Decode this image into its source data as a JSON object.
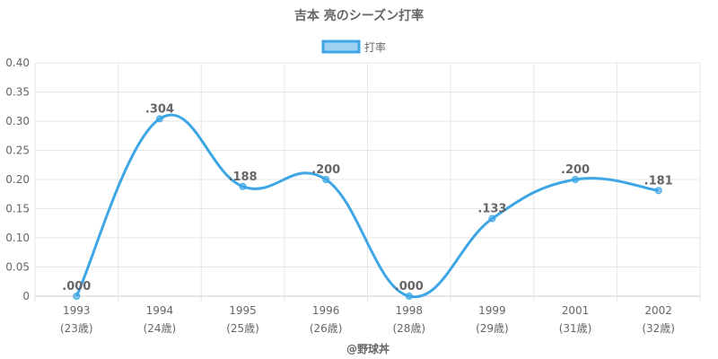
{
  "chart_data": {
    "type": "line",
    "title": "吉本 亮のシーズン打率",
    "legend": {
      "position": "top",
      "label": "打率"
    },
    "categories": [
      "1993",
      "1994",
      "1995",
      "1996",
      "1998",
      "1999",
      "2001",
      "2002"
    ],
    "category_sublabels": [
      "(23歳)",
      "(24歳)",
      "(25歳)",
      "(26歳)",
      "(28歳)",
      "(29歳)",
      "(31歳)",
      "(32歳)"
    ],
    "series": [
      {
        "name": "打率",
        "values": [
          0.0,
          0.304,
          0.188,
          0.2,
          0.0,
          0.133,
          0.2,
          0.181
        ],
        "data_labels": [
          ".000",
          ".304",
          ".188",
          ".200",
          ".000",
          ".133",
          ".200",
          ".181"
        ],
        "color": "#3ea6e4"
      }
    ],
    "ylim": [
      0,
      0.4
    ],
    "yticks": [
      "0",
      "0.05",
      "0.10",
      "0.15",
      "0.20",
      "0.25",
      "0.30",
      "0.35",
      "0.40"
    ],
    "grid": true
  },
  "credit": "@野球丼"
}
